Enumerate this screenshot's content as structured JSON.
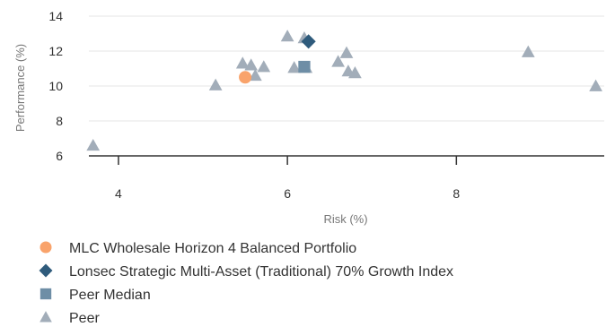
{
  "chart_data": {
    "type": "scatter",
    "title": "",
    "xlabel": "Risk (%)",
    "ylabel": "Performance (%)",
    "xlim": [
      3.65,
      9.75
    ],
    "ylim": [
      6,
      14
    ],
    "xticks": [
      4,
      6,
      8
    ],
    "yticks": [
      6,
      8,
      10,
      12,
      14
    ],
    "grid": "horizontal",
    "legend_position": "bottom",
    "series": [
      {
        "name": "MLC Wholesale Horizon 4 Balanced Portfolio",
        "marker": "circle",
        "color": "#F9A36B",
        "points": [
          {
            "x": 5.5,
            "y": 10.5
          }
        ]
      },
      {
        "name": "Lonsec Strategic Multi-Asset (Traditional) 70% Growth Index",
        "marker": "diamond",
        "color": "#2F5B7C",
        "points": [
          {
            "x": 6.25,
            "y": 12.55
          }
        ]
      },
      {
        "name": "Peer Median",
        "marker": "square",
        "color": "#6E8EA6",
        "points": [
          {
            "x": 6.2,
            "y": 11.1
          }
        ]
      },
      {
        "name": "Peer",
        "marker": "triangle",
        "color": "#A2ADB9",
        "points": [
          {
            "x": 3.7,
            "y": 6.6
          },
          {
            "x": 5.15,
            "y": 10.05
          },
          {
            "x": 5.47,
            "y": 11.3
          },
          {
            "x": 5.57,
            "y": 11.2
          },
          {
            "x": 5.62,
            "y": 10.6
          },
          {
            "x": 5.72,
            "y": 11.1
          },
          {
            "x": 6.0,
            "y": 12.85
          },
          {
            "x": 6.08,
            "y": 11.05
          },
          {
            "x": 6.2,
            "y": 12.75
          },
          {
            "x": 6.22,
            "y": 11.05
          },
          {
            "x": 6.6,
            "y": 11.4
          },
          {
            "x": 6.7,
            "y": 11.9
          },
          {
            "x": 6.72,
            "y": 10.85
          },
          {
            "x": 6.8,
            "y": 10.75
          },
          {
            "x": 8.85,
            "y": 11.95
          },
          {
            "x": 9.65,
            "y": 10.0
          }
        ]
      }
    ]
  }
}
